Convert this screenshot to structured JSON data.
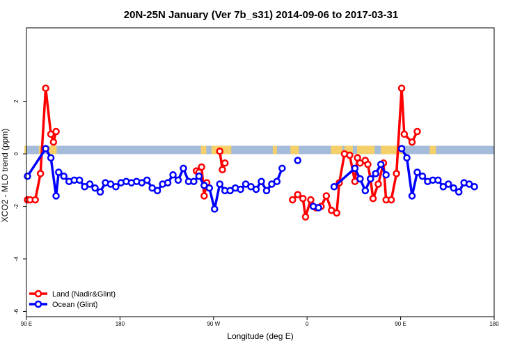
{
  "chart_data": {
    "type": "line",
    "title": "20N-25N January (Ver 7b_s31)   2014-09-06 to 2017-03-31",
    "xlabel": "Longitude (deg E)",
    "ylabel": "XCO2 - MLO trend (ppm)",
    "xlim": [
      90,
      540
    ],
    "ylim": [
      -6.2,
      4.8
    ],
    "x_ticks": [
      {
        "value": 90,
        "label": "90 E"
      },
      {
        "value": 180,
        "label": "180"
      },
      {
        "value": 270,
        "label": "90 W"
      },
      {
        "value": 360,
        "label": "0"
      },
      {
        "value": 450,
        "label": "90 E"
      },
      {
        "value": 540,
        "label": "180"
      }
    ],
    "y_ticks": [
      {
        "value": 2,
        "label": "2"
      },
      {
        "value": 0,
        "label": "0"
      },
      {
        "value": -2,
        "label": "-2"
      },
      {
        "value": -4,
        "label": "-4"
      },
      {
        "value": -6,
        "label": "-6"
      }
    ],
    "grid": false,
    "legend_position": "bottom-left",
    "background_band": {
      "y_center": 0.15,
      "land_color": "#f5d06a",
      "ocean_color": "#a4bcd9"
    },
    "series": [
      {
        "name": "Land (Nadir&Glint)",
        "color": "#ff0000",
        "segments": [
          {
            "x": [
              91,
              93.5,
              98.5,
              103.5,
              108.5,
              113.5,
              116,
              118.5
            ],
            "y": [
              -1.75,
              -1.75,
              -1.75,
              -0.75,
              2.5,
              0.75,
              0.45,
              0.85
            ]
          },
          {
            "x": [
              253.5,
              256,
              258.5,
              261,
              263.5,
              266
            ],
            "y": [
              -0.65,
              -0.7,
              -0.5,
              -1.6,
              -1.1,
              null
            ]
          },
          {
            "x": [
              268.5,
              276,
              278.5,
              281,
              283.5
            ],
            "y": [
              null,
              0.1,
              -0.6,
              -0.35,
              null
            ]
          },
          {
            "x": [
              343.5,
              346,
              351,
              356,
              358.5,
              363.5,
              368.5,
              373.5,
              378.5,
              383.5,
              388.5,
              391,
              396,
              401,
              406,
              408.5,
              411,
              416,
              418.5,
              421,
              423.5,
              428.5,
              433.5,
              436,
              441,
              446,
              451,
              453.5,
              461,
              466,
              471,
              476,
              478.5,
              481,
              486
            ],
            "y": [
              null,
              -1.75,
              -1.55,
              -1.7,
              -2.4,
              -1.75,
              -2.05,
              -2.0,
              -1.6,
              -2.15,
              -2.25,
              -1.1,
              0.0,
              -0.05,
              -1.05,
              -0.15,
              -0.35,
              -0.25,
              -0.4,
              -0.95,
              -1.7,
              -1.15,
              -0.35,
              -1.75,
              -1.75,
              -0.75,
              2.5,
              0.75,
              0.45,
              0.85,
              null,
              null,
              null,
              null,
              null
            ]
          }
        ]
      },
      {
        "name": "Ocean (Glint)",
        "color": "#0000ff",
        "segments": [
          {
            "x": [
              91,
              108.5,
              113.5,
              118.5,
              121,
              126,
              131,
              136,
              141,
              146,
              151,
              156,
              161,
              166,
              171,
              176,
              181,
              186,
              191,
              196,
              201,
              206,
              211,
              216,
              221,
              226,
              231,
              236,
              241,
              246,
              251,
              256,
              261,
              266,
              271,
              276,
              281,
              286,
              291,
              296,
              301,
              306,
              311,
              316,
              321,
              326,
              331,
              336,
              341
            ],
            "y": [
              -0.85,
              0.2,
              -0.15,
              -1.6,
              -0.7,
              -0.85,
              -1.05,
              -1.0,
              -1.0,
              -1.25,
              -1.15,
              -1.3,
              -1.45,
              -1.1,
              -1.15,
              -1.25,
              -1.1,
              -1.05,
              -1.1,
              -1.05,
              -1.1,
              -1.0,
              -1.3,
              -1.4,
              -1.15,
              -1.1,
              -0.8,
              -1.0,
              -0.55,
              -1.05,
              -1.05,
              -0.85,
              -1.2,
              -1.3,
              -2.1,
              -1.15,
              -1.4,
              -1.4,
              -1.3,
              -1.35,
              -1.15,
              -1.25,
              -1.35,
              -1.05,
              -1.4,
              -1.15,
              -1.05,
              -0.55,
              null
            ]
          },
          {
            "x": [
              351
            ],
            "y": [
              -0.25
            ]
          },
          {
            "x": [
              366,
              371,
              376,
              386,
              406,
              411,
              416,
              421,
              426,
              431,
              436,
              441,
              446,
              451,
              456,
              461,
              466,
              471,
              476,
              481,
              486,
              491,
              496,
              501,
              506,
              511,
              516,
              521,
              526,
              531,
              536,
              541
            ],
            "y": [
              -2.0,
              -2.05,
              null,
              -1.25,
              -0.55,
              -0.95,
              -1.4,
              -0.95,
              -0.75,
              -0.4,
              -0.8,
              null,
              null,
              0.2,
              -0.15,
              -1.6,
              -0.7,
              -0.85,
              -1.05,
              -1.0,
              -1.0,
              -1.25,
              -1.15,
              -1.3,
              -1.45,
              -1.1,
              -1.15,
              -1.25,
              null,
              null,
              null,
              null
            ]
          }
        ]
      }
    ]
  }
}
